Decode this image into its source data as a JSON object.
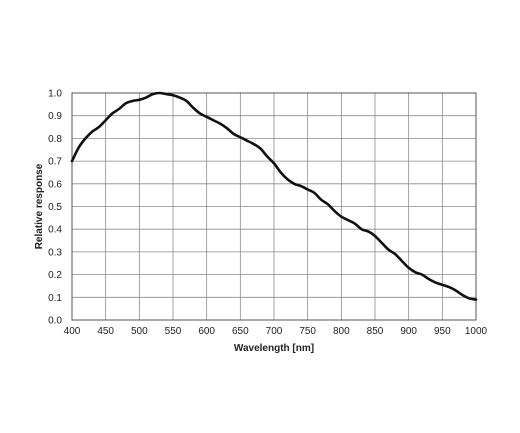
{
  "chart_data": {
    "type": "line",
    "title": "",
    "xlabel": "Wavelength [nm]",
    "ylabel": "Relative response",
    "xlim": [
      400,
      1000
    ],
    "ylim": [
      0.0,
      1.0
    ],
    "x_ticks": [
      "400",
      "450",
      "500",
      "550",
      "600",
      "650",
      "700",
      "750",
      "800",
      "850",
      "900",
      "950",
      "1000"
    ],
    "y_ticks": [
      "0.0",
      "0.1",
      "0.2",
      "0.3",
      "0.4",
      "0.5",
      "0.6",
      "0.7",
      "0.8",
      "0.9",
      "1.0"
    ],
    "grid": true,
    "legend": "none",
    "series": [
      {
        "color": "#111111",
        "x": [
          400,
          410,
          420,
          430,
          440,
          450,
          460,
          470,
          480,
          490,
          500,
          510,
          520,
          530,
          540,
          550,
          560,
          570,
          580,
          590,
          600,
          610,
          620,
          630,
          640,
          650,
          660,
          670,
          680,
          690,
          700,
          710,
          720,
          730,
          740,
          750,
          760,
          770,
          780,
          790,
          800,
          810,
          820,
          830,
          840,
          850,
          860,
          870,
          880,
          890,
          900,
          910,
          920,
          930,
          940,
          950,
          960,
          970,
          980,
          990,
          1000
        ],
        "y": [
          0.7,
          0.76,
          0.8,
          0.83,
          0.85,
          0.88,
          0.91,
          0.93,
          0.955,
          0.965,
          0.97,
          0.98,
          0.995,
          1.0,
          0.995,
          0.99,
          0.98,
          0.965,
          0.935,
          0.91,
          0.895,
          0.88,
          0.865,
          0.845,
          0.82,
          0.805,
          0.79,
          0.775,
          0.755,
          0.72,
          0.69,
          0.65,
          0.62,
          0.6,
          0.59,
          0.575,
          0.56,
          0.53,
          0.51,
          0.48,
          0.455,
          0.44,
          0.425,
          0.4,
          0.39,
          0.37,
          0.34,
          0.31,
          0.29,
          0.26,
          0.23,
          0.21,
          0.2,
          0.18,
          0.165,
          0.155,
          0.145,
          0.13,
          0.11,
          0.095,
          0.09
        ]
      }
    ]
  }
}
